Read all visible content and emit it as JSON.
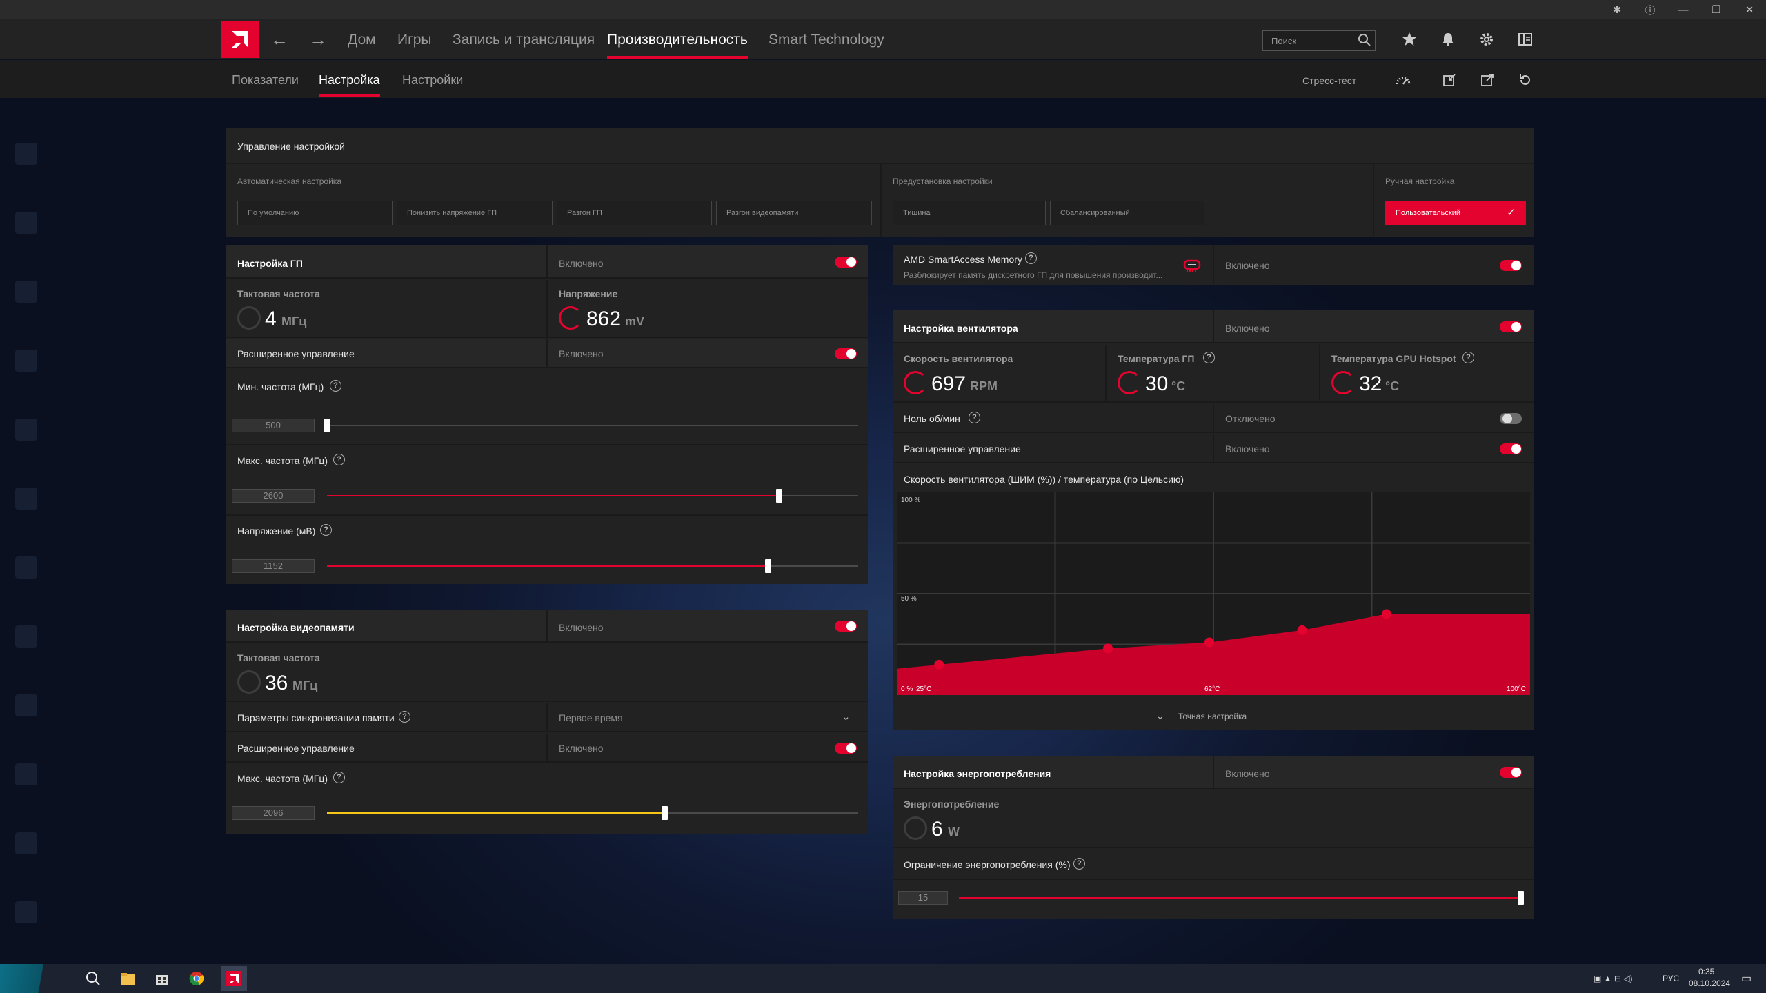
{
  "nav": {
    "tabs": [
      "Дом",
      "Игры",
      "Запись и трансляция",
      "Производительность",
      "Smart Technology"
    ],
    "search_placeholder": "Поиск",
    "icons": [
      "star-icon",
      "bell-icon",
      "gear-icon",
      "layout-icon"
    ]
  },
  "subnav": {
    "tabs": [
      "Показатели",
      "Настройка",
      "Настройки"
    ],
    "stress": "Стресс-тест"
  },
  "control": {
    "title": "Управление настройкой",
    "auto": {
      "label": "Автоматическая настройка",
      "buttons": [
        "По умолчанию",
        "Понизить напряжение ГП",
        "Разгон ГП",
        "Разгон видеопамяти"
      ]
    },
    "preset": {
      "label": "Предустановка настройки",
      "buttons": [
        "Тишина",
        "Сбалансированный"
      ]
    },
    "manual": {
      "label": "Ручная настройка",
      "button": "Пользовательский"
    }
  },
  "gpu": {
    "title": "Настройка ГП",
    "state": "Включено",
    "clock": {
      "label": "Тактовая частота",
      "value": "4",
      "unit": "МГц"
    },
    "voltage": {
      "label": "Напряжение",
      "value": "862",
      "unit": "mV"
    },
    "advanced": {
      "label": "Расширенное управление",
      "state": "Включено"
    },
    "min": {
      "label": "Мин. частота (МГц)",
      "value": "500",
      "fraction": 0.0
    },
    "max": {
      "label": "Макс. частота (МГц)",
      "value": "2600",
      "fraction": 0.85
    },
    "volt": {
      "label": "Напряжение (мВ)",
      "value": "1152",
      "fraction": 0.83
    }
  },
  "vram": {
    "title": "Настройка видеопамяти",
    "state": "Включено",
    "clock": {
      "label": "Тактовая частота",
      "value": "36",
      "unit": "МГц"
    },
    "timing": {
      "label": "Параметры синхронизации памяти",
      "value": "Первое время"
    },
    "advanced": {
      "label": "Расширенное управление",
      "state": "Включено"
    },
    "max": {
      "label": "Макс. частота (МГц)",
      "value": "2096",
      "fraction": 0.635
    }
  },
  "sam": {
    "title": "AMD SmartAccess Memory",
    "desc": "Разблокирует память дискретного ГП для повышения производит...",
    "state": "Включено"
  },
  "fan": {
    "title": "Настройка вентилятора",
    "state": "Включено",
    "speed": {
      "label": "Скорость вентилятора",
      "value": "697",
      "unit": "RPM"
    },
    "temp": {
      "label": "Температура ГП",
      "value": "30",
      "unit": "°C"
    },
    "hotspot": {
      "label": "Температура GPU Hotspot",
      "value": "32",
      "unit": "°C"
    },
    "zero": {
      "label": "Ноль об/мин",
      "state": "Отключено"
    },
    "advanced": {
      "label": "Расширенное управление",
      "state": "Включено"
    },
    "curve_title": "Скорость вентилятора (ШИМ (%)) / температура (по Цельсию)",
    "fine": "Точная настройка"
  },
  "chart_data": {
    "type": "area",
    "y_tick_labels": [
      "100 %",
      "50 %",
      "0 %"
    ],
    "x_tick_labels": [
      "25°C",
      "62°C",
      "100°C"
    ],
    "ylim": [
      0,
      100
    ],
    "xlim": [
      25,
      100
    ],
    "series": [
      {
        "x": [
          30,
          50,
          62,
          73,
          83
        ],
        "y": [
          15,
          23,
          26,
          32,
          40
        ]
      }
    ]
  },
  "power": {
    "title": "Настройка энергопотребления",
    "state": "Включено",
    "usage": {
      "label": "Энергопотребление",
      "value": "6",
      "unit": "W"
    },
    "limit": {
      "label": "Ограничение энергопотребления (%)",
      "value": "15",
      "fraction": 1.0
    }
  },
  "taskbar": {
    "lang": "РУС",
    "time": "0:35",
    "date": "08.10.2024"
  }
}
